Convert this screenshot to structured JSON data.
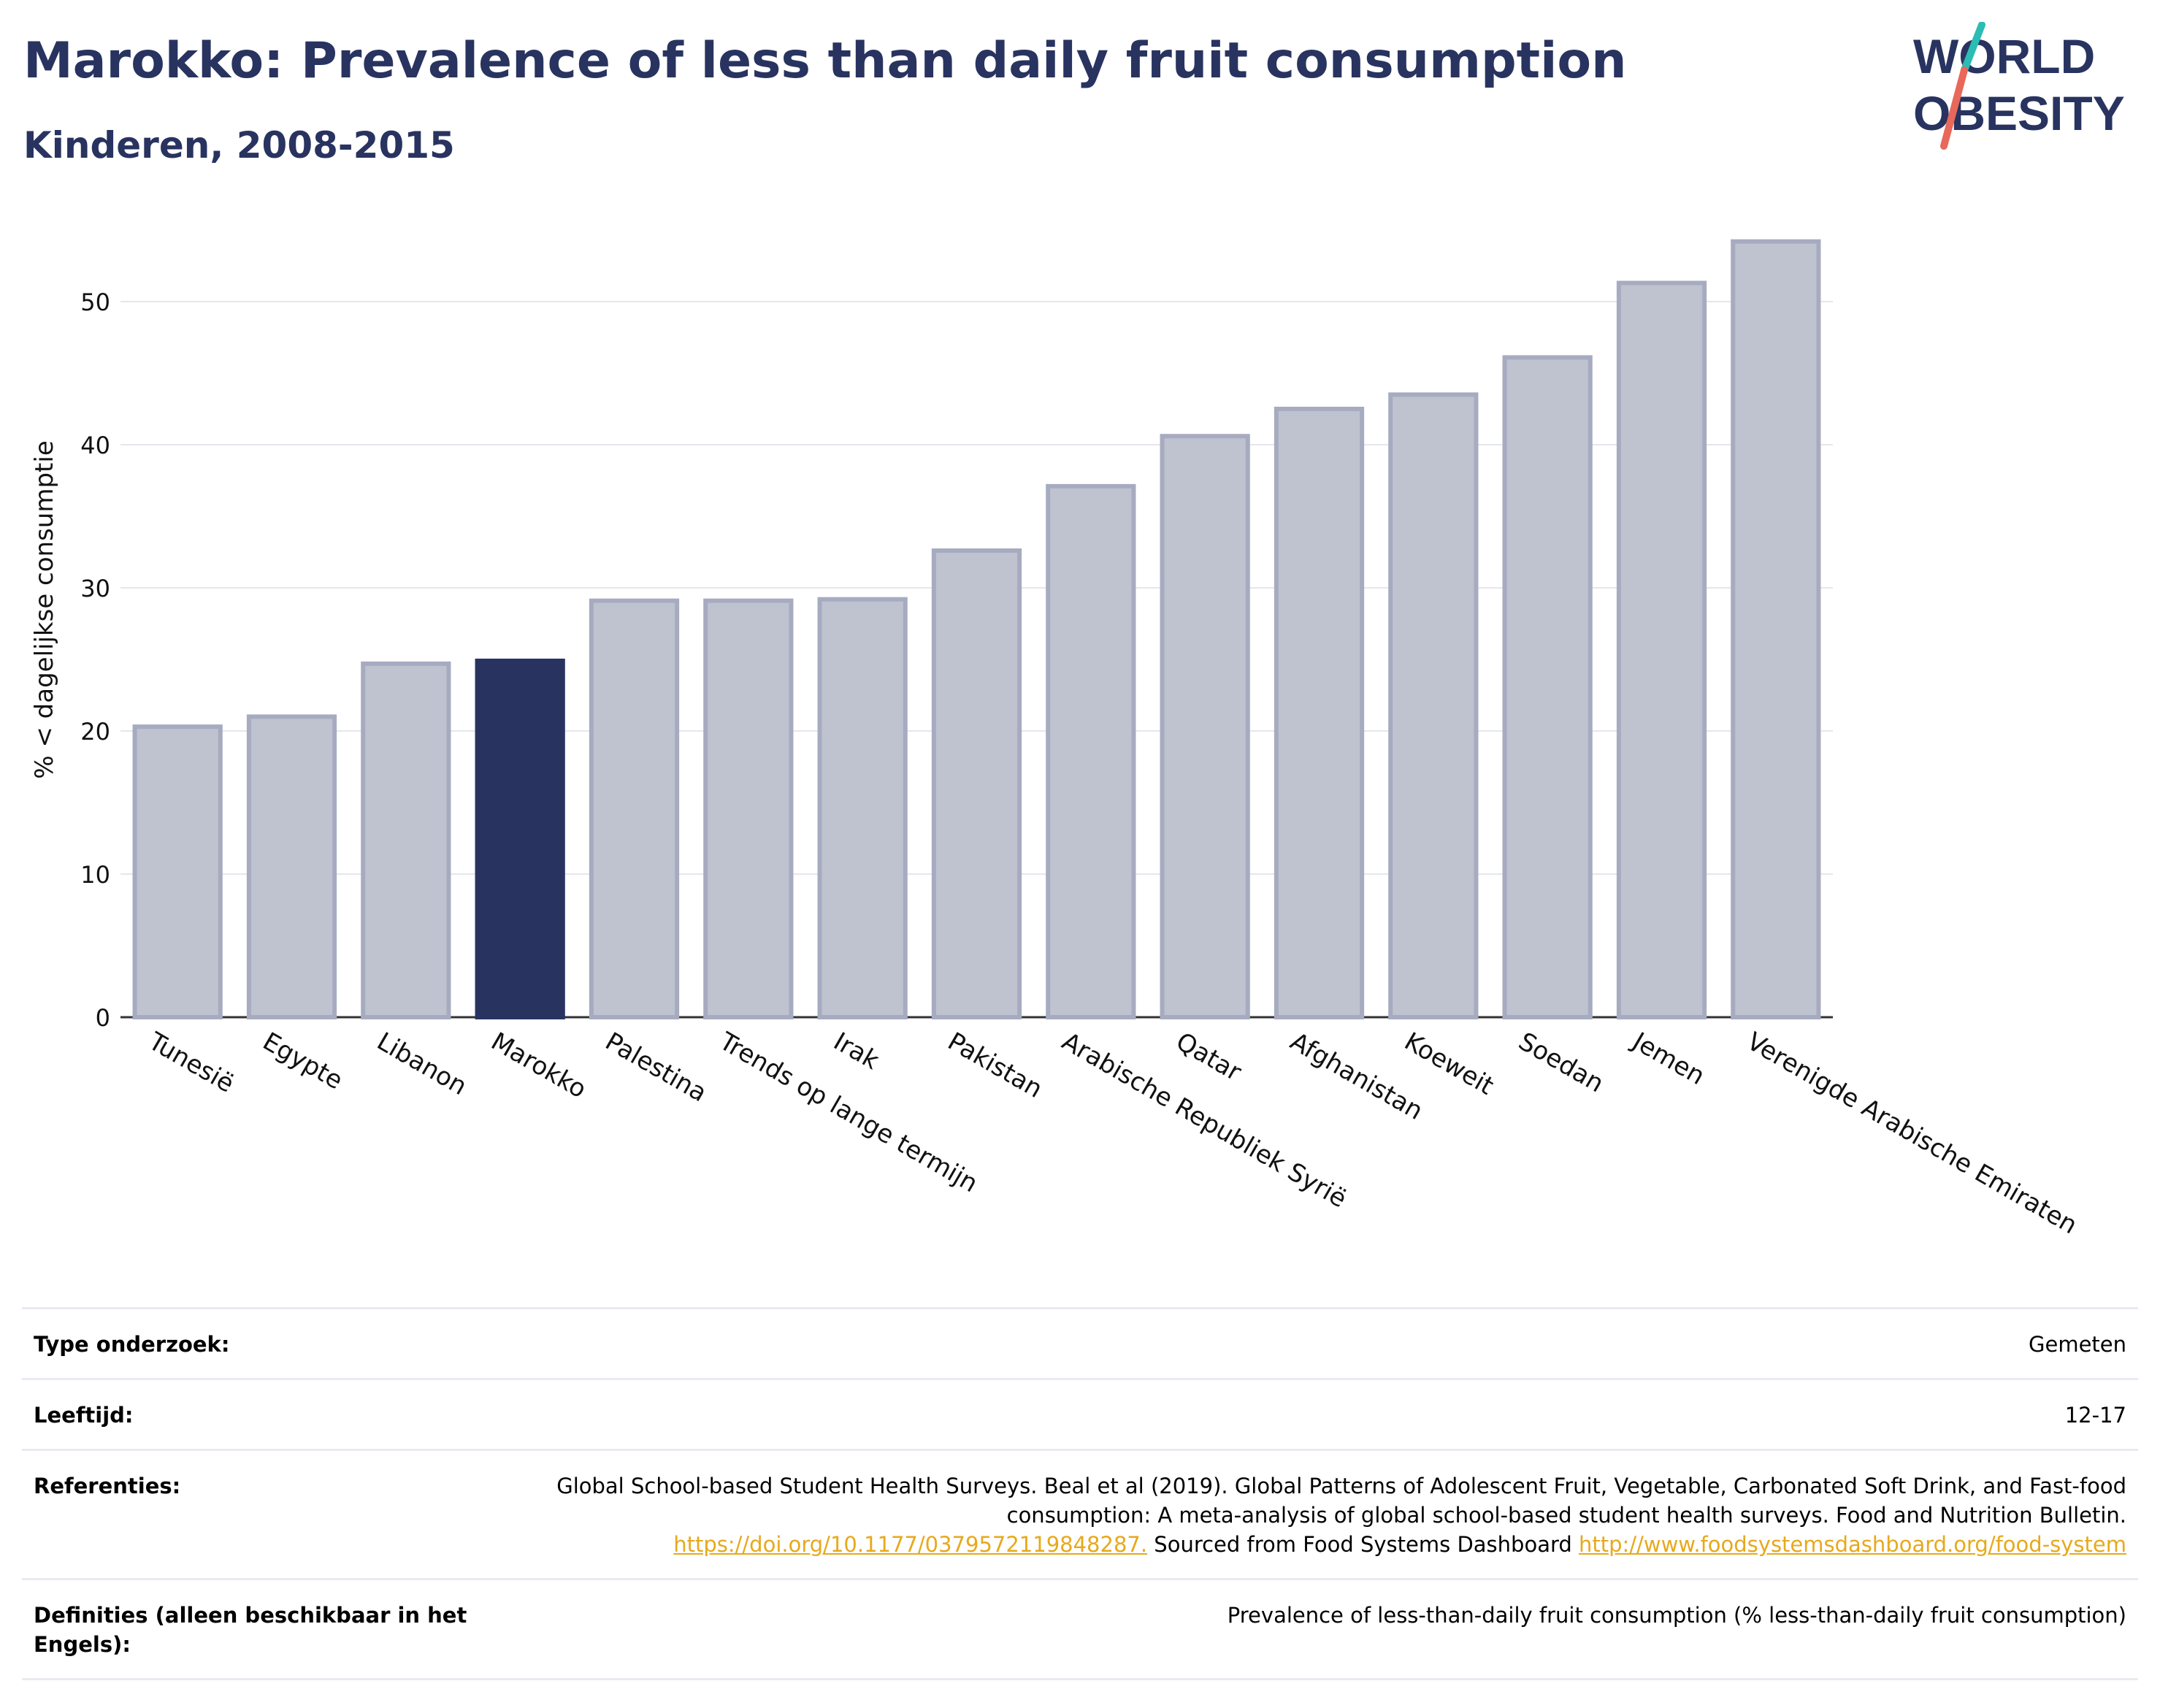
{
  "header": {
    "title": "Marokko: Prevalence of less than daily fruit consumption",
    "subtitle": "Kinderen, 2008-2015"
  },
  "logo": {
    "line1": "WORLD",
    "line2": "OBESITY"
  },
  "colors": {
    "highlight": "#283360",
    "bar_fill": "#bfc2cf",
    "bar_stroke": "#a7abc0",
    "title": "#283360",
    "link": "#e7a91b",
    "logo_teal": "#2bbcb3",
    "logo_coral": "#e8685a"
  },
  "chart_data": {
    "type": "bar",
    "ylabel": "% < dagelijkse consumptie",
    "ylim": [
      0,
      55
    ],
    "yticks": [
      0,
      10,
      20,
      30,
      40,
      50
    ],
    "grid": true,
    "highlight_category": "Marokko",
    "categories": [
      "Tunesië",
      "Egypte",
      "Libanon",
      "Marokko",
      "Palestina",
      "Trends op lange termijn",
      "Irak",
      "Pakistan",
      "Arabische Republiek Syrië",
      "Qatar",
      "Afghanistan",
      "Koeweit",
      "Soedan",
      "Jemen",
      "Verenigde Arabische Emiraten"
    ],
    "values": [
      20.3,
      21.0,
      24.7,
      24.9,
      29.1,
      29.1,
      29.2,
      32.6,
      37.1,
      40.6,
      42.5,
      43.5,
      46.1,
      51.3,
      54.2
    ]
  },
  "info": {
    "rows": [
      {
        "label": "Type onderzoek:",
        "value": "Gemeten"
      },
      {
        "label": "Leeftijd:",
        "value": "12-17"
      },
      {
        "label": "Referenties:",
        "value": "Global School-based Student Health Surveys. Beal et al (2019). Global Patterns of Adolescent Fruit, Vegetable, Carbonated Soft Drink, and Fast-food consumption: A meta-analysis of global school-based student health surveys. Food and Nutrition Bulletin. ",
        "link1": "https://doi.org/10.1177/0379572119848287.",
        "mid": " Sourced from Food Systems Dashboard ",
        "link2": "http://www.foodsystemsdashboard.org/food-system"
      },
      {
        "label": "Definities (alleen beschikbaar in het Engels):",
        "value": "Prevalence of less-than-daily fruit consumption (% less-than-daily fruit consumption)"
      }
    ]
  }
}
